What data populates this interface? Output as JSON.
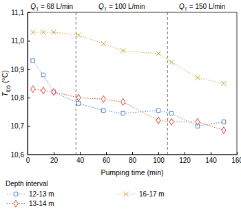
{
  "chart_data": {
    "type": "line",
    "x_label": "Pumping time (min)",
    "y_label": {
      "symbol": "T",
      "subscript": "l(z)",
      "unit": " (°C)"
    },
    "x": [
      4,
      12,
      20,
      39,
      58,
      73,
      100,
      110,
      130,
      150
    ],
    "series": [
      {
        "name": "12-13 m",
        "color": "#4a86c5",
        "marker": "square",
        "line_style": "dotted",
        "values": [
          10.93,
          10.88,
          10.82,
          10.78,
          10.755,
          10.745,
          10.755,
          10.745,
          10.7,
          10.715
        ]
      },
      {
        "name": "13-14 m",
        "color": "#e0452e",
        "marker": "diamond",
        "line_style": "dotted",
        "values": [
          10.83,
          10.825,
          10.82,
          10.8,
          10.795,
          10.785,
          10.72,
          10.715,
          10.715,
          10.685
        ]
      },
      {
        "name": "16-17 m",
        "color": "#c9a53a",
        "marker": "x",
        "line_style": "dotted",
        "values": [
          11.03,
          11.03,
          11.03,
          11.02,
          10.99,
          10.965,
          10.955,
          10.925,
          10.87,
          10.85
        ]
      }
    ],
    "regions": [
      {
        "symbol": "Q",
        "subscript": "T",
        "rest": " = 68 L/min",
        "start": 0,
        "end": 37
      },
      {
        "symbol": "Q",
        "subscript": "T",
        "rest": " = 100 L/min",
        "start": 37,
        "end": 107
      },
      {
        "symbol": "Q",
        "subscript": "T",
        "rest": " = 150 L/min",
        "start": 107,
        "end": 160
      }
    ],
    "xlim": [
      0,
      160
    ],
    "xticks": [
      0,
      20,
      40,
      60,
      80,
      100,
      120,
      140,
      160
    ],
    "ylim": [
      10.6,
      11.1
    ],
    "yticks": [
      {
        "value": 10.6,
        "label": "10,6"
      },
      {
        "value": 10.7,
        "label": "10,7"
      },
      {
        "value": 10.8,
        "label": "10,8"
      },
      {
        "value": 10.9,
        "label": "10,9"
      },
      {
        "value": 11.0,
        "label": "11,0"
      },
      {
        "value": 11.1,
        "label": "11,1"
      }
    ],
    "grid": false,
    "legend": "below",
    "legend_title": "Depth interval"
  }
}
